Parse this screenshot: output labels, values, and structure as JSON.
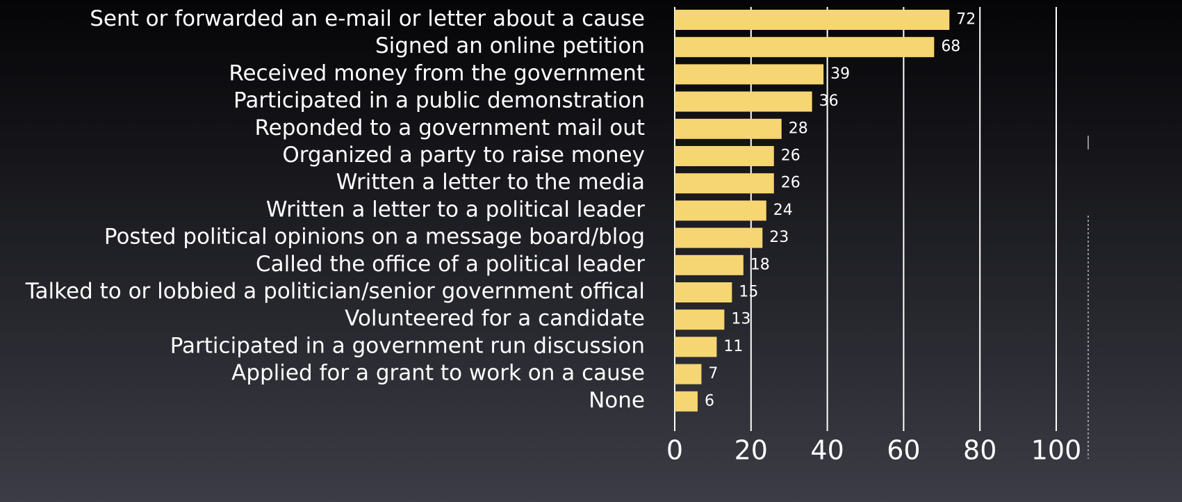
{
  "chart_data": {
    "type": "bar",
    "orientation": "horizontal",
    "categories": [
      "Sent or forwarded an e-mail or letter about a cause",
      "Signed an online petition",
      "Received money from the government",
      "Participated in a public demonstration",
      "Reponded to a government mail out",
      "Organized a party to raise money",
      "Written a letter to the media",
      "Written a letter to a political leader",
      "Posted political opinions on a message board/blog",
      "Called the office of a political leader",
      "Talked to or lobbied a politician/senior government offical",
      "Volunteered for a candidate",
      "Participated in a government run discussion",
      "Applied for a grant to work on a cause",
      "None"
    ],
    "values": [
      72,
      68,
      39,
      36,
      28,
      26,
      26,
      24,
      23,
      18,
      15,
      13,
      11,
      7,
      6
    ],
    "color": "#f6d573",
    "xlim": [
      0,
      100
    ],
    "xticks": [
      0,
      20,
      40,
      60,
      80,
      100
    ],
    "grid": true
  }
}
